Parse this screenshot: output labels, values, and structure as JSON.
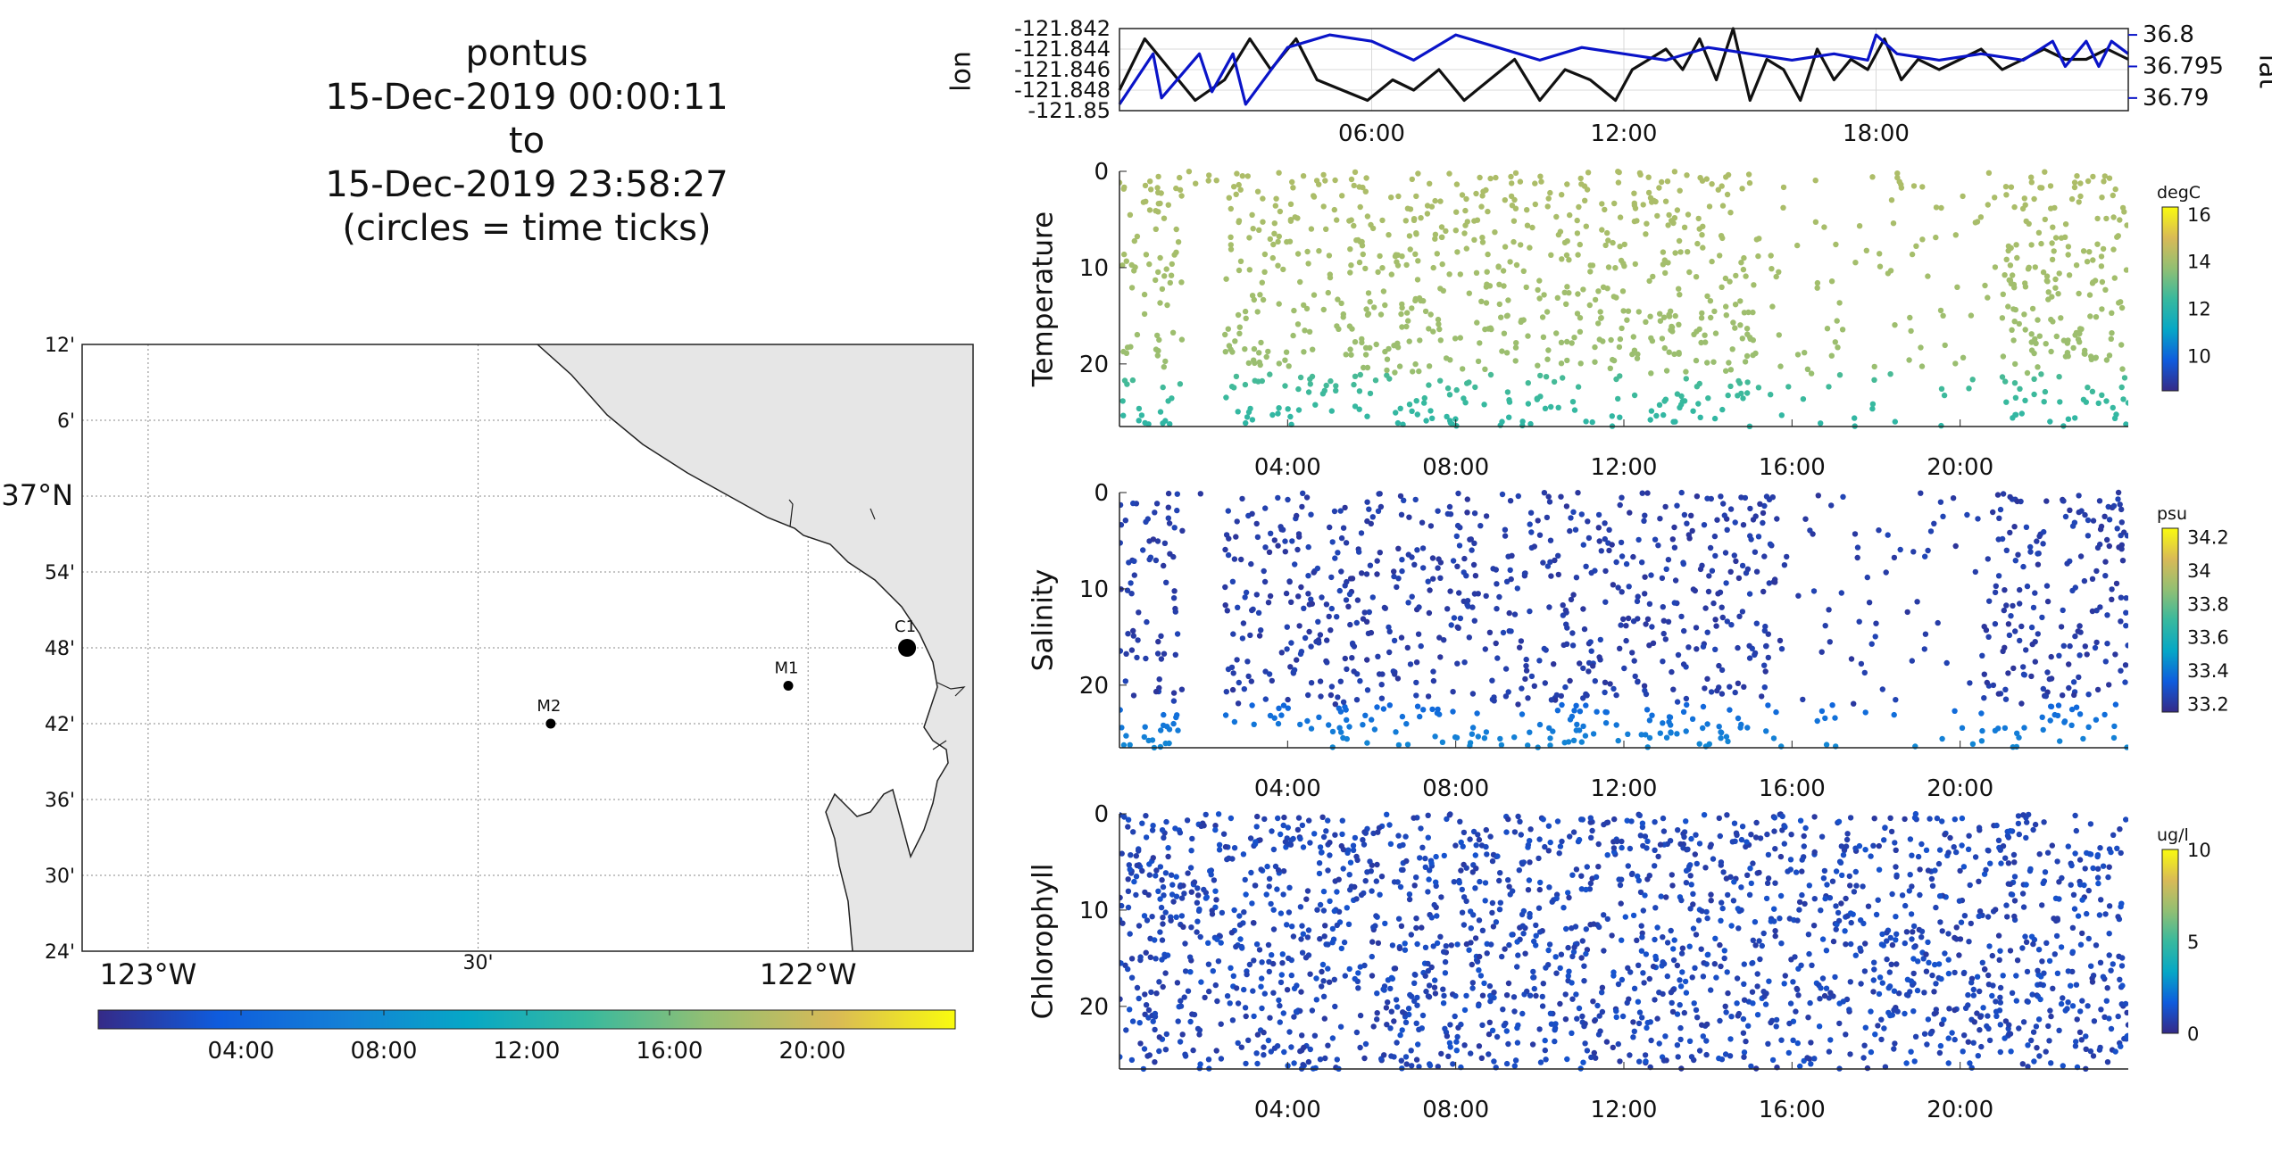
{
  "title": {
    "line1": "pontus",
    "line2": "15-Dec-2019 00:00:11",
    "line3": "to",
    "line4": "15-Dec-2019 23:58:27",
    "line5": "(circles = time ticks)"
  },
  "colors": {
    "land": "#e6e6e6",
    "lat_line": "#0a14c8",
    "lon_line": "#111111",
    "grid": "#d0d0d0"
  },
  "chart_data": [
    {
      "type": "map",
      "lat_ticks": [
        "12'",
        "6'",
        "37°N",
        "54'",
        "48'",
        "42'",
        "36'",
        "30'",
        "24'"
      ],
      "lon_ticks": [
        "123°W",
        "30'",
        "122°W"
      ],
      "lat_range": [
        36.4,
        37.2
      ],
      "lon_range": [
        -123.1,
        -121.75
      ],
      "stations": [
        {
          "name": "M2",
          "lon": -122.39,
          "lat": 36.7
        },
        {
          "name": "M1",
          "lon": -122.03,
          "lat": 36.75
        },
        {
          "name": "C1",
          "lon": -121.85,
          "lat": 36.8
        }
      ],
      "colorbar_ticks": [
        "04:00",
        "08:00",
        "12:00",
        "16:00",
        "20:00"
      ],
      "grid": true
    },
    {
      "type": "line",
      "xlabel": "",
      "ylabel_left": "lon",
      "ylabel_right": "lat",
      "x_ticks": [
        "06:00",
        "12:00",
        "18:00"
      ],
      "left_ticks": [
        "-121.842",
        "-121.844",
        "-121.846",
        "-121.848",
        "-121.85"
      ],
      "right_ticks": [
        "36.8",
        "36.795",
        "36.79"
      ],
      "xlim": [
        0,
        24
      ],
      "ylim_left": [
        -121.85,
        -121.842
      ],
      "ylim_right": [
        36.788,
        36.801
      ],
      "series": [
        {
          "axis": "left",
          "x": [
            0.0,
            0.6,
            1.2,
            1.8,
            2.5,
            3.1,
            3.6,
            4.2,
            4.7,
            5.3,
            5.9,
            6.5,
            7.0,
            7.6,
            8.2,
            8.8,
            9.4,
            10.0,
            10.6,
            11.2,
            11.8,
            12.2,
            12.6,
            13.0,
            13.4,
            13.8,
            14.2,
            14.6,
            15.0,
            15.4,
            15.8,
            16.2,
            16.6,
            17.0,
            17.4,
            17.8,
            18.2,
            18.6,
            19.0,
            19.5,
            20.0,
            20.5,
            21.0,
            21.5,
            22.0,
            22.5,
            23.0,
            23.5,
            24.0
          ],
          "y": [
            -121.848,
            -121.843,
            -121.846,
            -121.849,
            -121.847,
            -121.843,
            -121.846,
            -121.843,
            -121.847,
            -121.848,
            -121.849,
            -121.847,
            -121.848,
            -121.846,
            -121.849,
            -121.847,
            -121.845,
            -121.849,
            -121.846,
            -121.847,
            -121.849,
            -121.846,
            -121.845,
            -121.844,
            -121.846,
            -121.843,
            -121.847,
            -121.842,
            -121.849,
            -121.845,
            -121.846,
            -121.849,
            -121.844,
            -121.847,
            -121.845,
            -121.846,
            -121.843,
            -121.847,
            -121.845,
            -121.846,
            -121.845,
            -121.844,
            -121.846,
            -121.845,
            -121.844,
            -121.845,
            -121.845,
            -121.844,
            -121.845
          ]
        },
        {
          "axis": "right",
          "x": [
            0.0,
            0.8,
            1.0,
            1.9,
            2.2,
            2.7,
            3.0,
            4.0,
            5.0,
            6.0,
            7.0,
            8.0,
            9.0,
            10.0,
            11.0,
            12.0,
            13.0,
            14.0,
            15.0,
            16.0,
            17.0,
            17.8,
            18.0,
            18.5,
            19.5,
            20.5,
            21.5,
            22.2,
            22.5,
            23.0,
            23.3,
            23.6,
            24.0
          ],
          "y": [
            36.789,
            36.797,
            36.79,
            36.797,
            36.791,
            36.797,
            36.789,
            36.798,
            36.8,
            36.799,
            36.796,
            36.8,
            36.798,
            36.796,
            36.798,
            36.797,
            36.796,
            36.798,
            36.797,
            36.796,
            36.797,
            36.796,
            36.8,
            36.797,
            36.796,
            36.797,
            36.796,
            36.799,
            36.795,
            36.799,
            36.795,
            36.799,
            36.797
          ]
        }
      ]
    },
    {
      "type": "scatter",
      "ylabel": "Temperature",
      "colorbar_label": "degC",
      "colorbar_ticks": [
        "16",
        "14",
        "12",
        "10"
      ],
      "clim": [
        8.5,
        16.3
      ],
      "x_ticks": [
        "04:00",
        "08:00",
        "12:00",
        "16:00",
        "20:00"
      ],
      "y_ticks": [
        "0",
        "10",
        "20"
      ],
      "xlim": [
        0,
        24
      ],
      "ylim": [
        26.5,
        0
      ]
    },
    {
      "type": "scatter",
      "ylabel": "Salinity",
      "colorbar_label": "psu",
      "colorbar_ticks": [
        "34.2",
        "34",
        "33.8",
        "33.6",
        "33.4",
        "33.2"
      ],
      "clim": [
        33.15,
        34.25
      ],
      "x_ticks": [
        "04:00",
        "08:00",
        "12:00",
        "16:00",
        "20:00"
      ],
      "y_ticks": [
        "0",
        "10",
        "20"
      ],
      "xlim": [
        0,
        24
      ],
      "ylim": [
        26.5,
        0
      ]
    },
    {
      "type": "scatter",
      "ylabel": "Chlorophyll",
      "colorbar_label": "ug/l",
      "colorbar_ticks": [
        "10",
        "5",
        "0"
      ],
      "clim": [
        0,
        10
      ],
      "x_ticks": [
        "04:00",
        "08:00",
        "12:00",
        "16:00",
        "20:00"
      ],
      "y_ticks": [
        "0",
        "10",
        "20"
      ],
      "xlim": [
        0,
        24
      ],
      "ylim": [
        26.5,
        0
      ]
    }
  ]
}
